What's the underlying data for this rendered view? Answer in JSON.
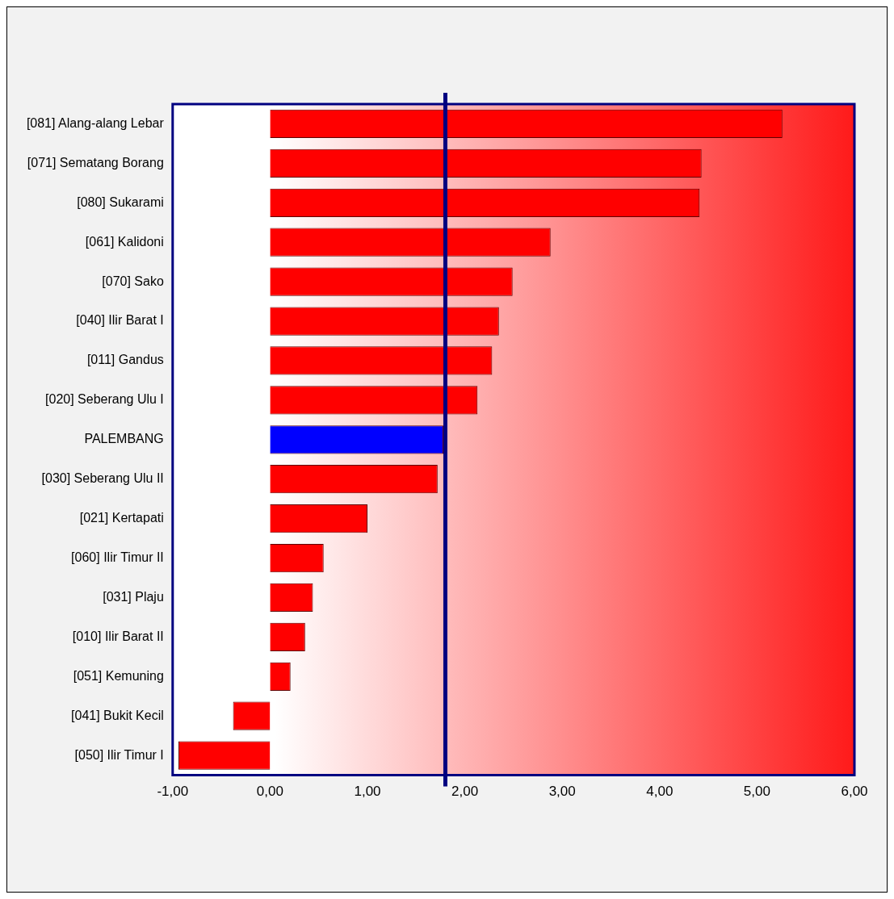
{
  "chart_data": {
    "type": "bar",
    "orientation": "horizontal",
    "categories": [
      "[081] Alang-alang Lebar",
      "[071] Sematang Borang",
      "[080] Sukarami",
      "[061] Kalidoni",
      "[070] Sako",
      "[040] Ilir Barat I",
      "[011] Gandus",
      "[020] Seberang Ulu I",
      "PALEMBANG",
      "[030] Seberang Ulu II",
      "[021] Kertapati",
      "[060] Ilir Timur II",
      "[031] Plaju",
      "[010] Ilir Barat II",
      "[051] Kemuning",
      "[041] Bukit Kecil",
      "[050] Ilir Timur I"
    ],
    "values": [
      5.26,
      4.43,
      4.41,
      2.88,
      2.49,
      2.35,
      2.28,
      2.13,
      1.78,
      1.72,
      1.0,
      0.55,
      0.44,
      0.36,
      0.21,
      -0.38,
      -0.94
    ],
    "colors": [
      "#ff0000",
      "#ff0000",
      "#ff0000",
      "#ff0000",
      "#ff0000",
      "#ff0000",
      "#ff0000",
      "#ff0000",
      "#0000ff",
      "#ff0000",
      "#ff0000",
      "#ff0000",
      "#ff0000",
      "#ff0000",
      "#ff0000",
      "#ff0000",
      "#ff0000"
    ],
    "xlim": [
      -1,
      6
    ],
    "xticks": [
      {
        "value": -1,
        "label": "-1,00"
      },
      {
        "value": 0,
        "label": "0,00"
      },
      {
        "value": 1,
        "label": "1,00"
      },
      {
        "value": 2,
        "label": "2,00"
      },
      {
        "value": 3,
        "label": "3,00"
      },
      {
        "value": 4,
        "label": "4,00"
      },
      {
        "value": 5,
        "label": "5,00"
      },
      {
        "value": 6,
        "label": "6,00"
      }
    ],
    "ref_lines": [
      {
        "axis": "x",
        "value": 1.8,
        "color": "#000080"
      }
    ],
    "grid": false,
    "legend": false
  }
}
